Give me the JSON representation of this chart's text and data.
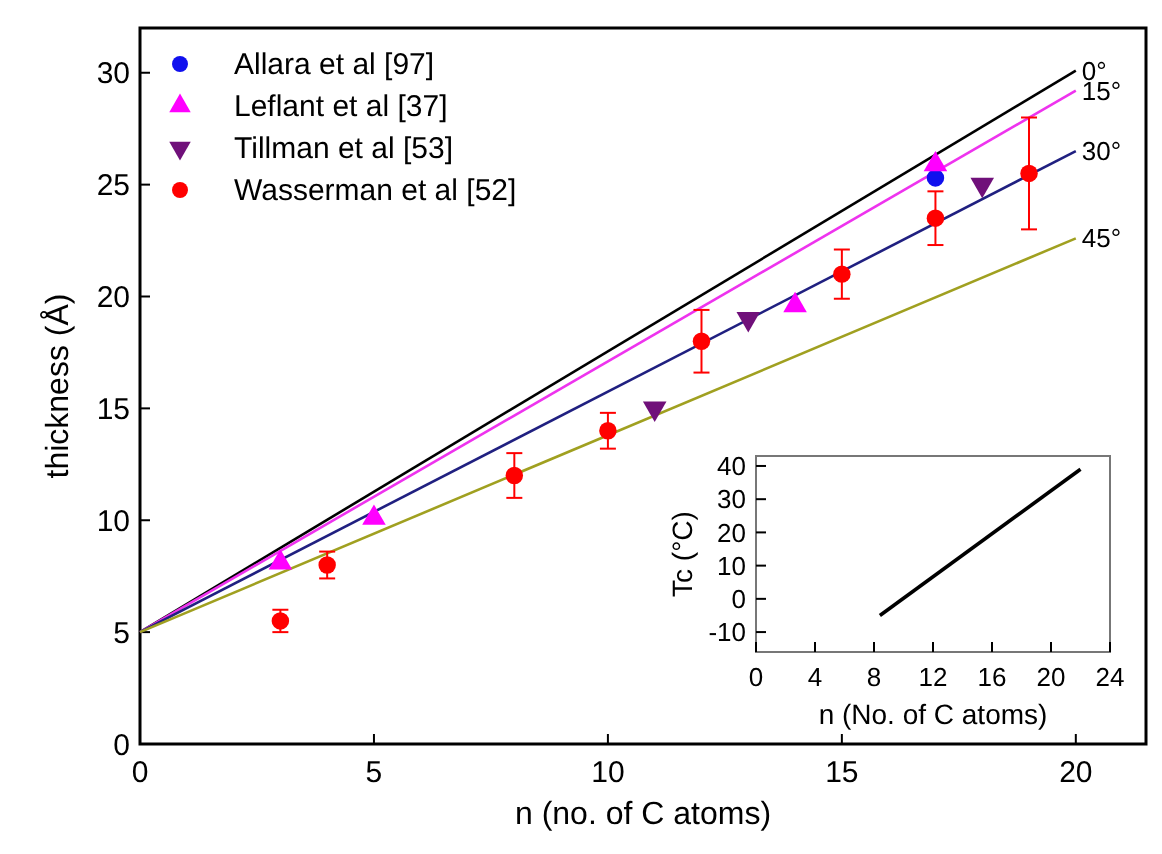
{
  "chart_data": [
    {
      "type": "scatter",
      "xlabel": "n (no. of C atoms)",
      "ylabel": "thickness (Å)",
      "xlim": [
        0,
        21.5
      ],
      "ylim": [
        0,
        32
      ],
      "xticks": [
        0,
        5,
        10,
        15,
        20
      ],
      "yticks": [
        0,
        5,
        10,
        15,
        20,
        25,
        30
      ],
      "legend": "top left",
      "series": [
        {
          "type": "line",
          "name": "0°",
          "color": "#000000",
          "x": [
            0,
            20
          ],
          "values": [
            5,
            30.1
          ]
        },
        {
          "type": "line",
          "name": "15°",
          "color": "#ee33ee",
          "x": [
            0,
            20
          ],
          "values": [
            5,
            29.2
          ]
        },
        {
          "type": "line",
          "name": "30°",
          "color": "#202080",
          "x": [
            0,
            20
          ],
          "values": [
            5,
            26.5
          ]
        },
        {
          "type": "line",
          "name": "45°",
          "color": "#a0a020",
          "x": [
            0,
            20
          ],
          "values": [
            5,
            22.6
          ]
        },
        {
          "name": "Allara et al [97]",
          "color": "#1010ee",
          "marker": "circle",
          "x": [
            17
          ],
          "values": [
            25.3
          ]
        },
        {
          "name": "Leflant et al [37]",
          "color": "#ff00ff",
          "marker": "triangle",
          "x": [
            3,
            5,
            14,
            17
          ],
          "values": [
            8.1,
            10.1,
            19.6,
            25.9
          ]
        },
        {
          "name": "Tillman et al [53]",
          "color": "#70107a",
          "marker": "triangle_down",
          "x": [
            11,
            13,
            18
          ],
          "values": [
            15,
            19,
            25
          ]
        },
        {
          "name": "Wasserman et al [52]",
          "color": "#ff0000",
          "marker": "circle",
          "x": [
            3,
            4,
            8,
            10,
            12,
            15,
            17,
            19
          ],
          "values": [
            5.5,
            8,
            12,
            14,
            18,
            21,
            23.5,
            25.5
          ],
          "errors": [
            0.5,
            0.6,
            1,
            0.8,
            1.4,
            1.1,
            1.2,
            2.5
          ]
        }
      ]
    },
    {
      "type": "line",
      "xlabel": "n (No. of C atoms)",
      "ylabel": "Tc (°C)",
      "xlim": [
        0,
        24
      ],
      "ylim": [
        -16,
        43
      ],
      "xticks": [
        0,
        4,
        8,
        12,
        16,
        20,
        24
      ],
      "yticks": [
        -10,
        0,
        10,
        20,
        30,
        40
      ],
      "series": [
        {
          "color": "#000000",
          "x": [
            8.4,
            22
          ],
          "values": [
            -5,
            39
          ]
        }
      ]
    }
  ]
}
